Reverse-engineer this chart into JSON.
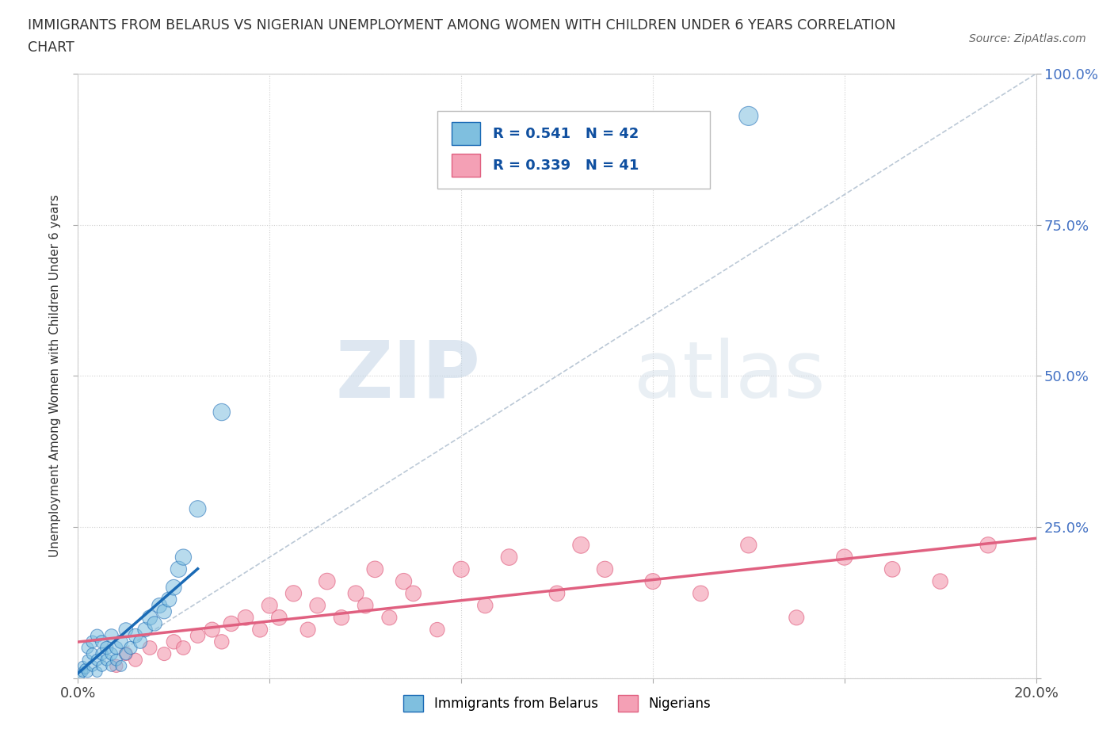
{
  "title_line1": "IMMIGRANTS FROM BELARUS VS NIGERIAN UNEMPLOYMENT AMONG WOMEN WITH CHILDREN UNDER 6 YEARS CORRELATION",
  "title_line2": "CHART",
  "source": "Source: ZipAtlas.com",
  "ylabel": "Unemployment Among Women with Children Under 6 years",
  "xlim": [
    0.0,
    0.2
  ],
  "ylim": [
    0.0,
    1.0
  ],
  "xticks": [
    0.0,
    0.04,
    0.08,
    0.12,
    0.16,
    0.2
  ],
  "yticks": [
    0.0,
    0.25,
    0.5,
    0.75,
    1.0
  ],
  "xtick_labels": [
    "0.0%",
    "",
    "",
    "",
    "",
    "20.0%"
  ],
  "ytick_labels_right": [
    "",
    "25.0%",
    "50.0%",
    "75.0%",
    "100.0%"
  ],
  "grid_color": "#d0d0d0",
  "background_color": "#ffffff",
  "watermark_zip": "ZIP",
  "watermark_atlas": "atlas",
  "legend_r1": "R = 0.541   N = 42",
  "legend_r2": "R = 0.339   N = 41",
  "legend_label1": "Immigrants from Belarus",
  "legend_label2": "Nigerians",
  "color_blue": "#7fbfdf",
  "color_pink": "#f4a0b5",
  "trend_color_blue": "#1a6ab5",
  "trend_color_pink": "#e06080",
  "blue_x": [
    0.0005,
    0.001,
    0.001,
    0.0015,
    0.002,
    0.002,
    0.002,
    0.003,
    0.003,
    0.003,
    0.004,
    0.004,
    0.004,
    0.005,
    0.005,
    0.005,
    0.006,
    0.006,
    0.007,
    0.007,
    0.007,
    0.008,
    0.008,
    0.009,
    0.009,
    0.01,
    0.01,
    0.011,
    0.012,
    0.013,
    0.014,
    0.015,
    0.016,
    0.017,
    0.018,
    0.019,
    0.02,
    0.021,
    0.022,
    0.025,
    0.03,
    0.14
  ],
  "blue_y": [
    0.005,
    0.01,
    0.02,
    0.015,
    0.01,
    0.03,
    0.05,
    0.02,
    0.04,
    0.06,
    0.01,
    0.03,
    0.07,
    0.02,
    0.04,
    0.06,
    0.03,
    0.05,
    0.02,
    0.04,
    0.07,
    0.03,
    0.05,
    0.02,
    0.06,
    0.04,
    0.08,
    0.05,
    0.07,
    0.06,
    0.08,
    0.1,
    0.09,
    0.12,
    0.11,
    0.13,
    0.15,
    0.18,
    0.2,
    0.28,
    0.44,
    0.93
  ],
  "blue_sizes": [
    30,
    35,
    30,
    35,
    40,
    35,
    45,
    40,
    45,
    50,
    35,
    45,
    55,
    40,
    50,
    55,
    45,
    55,
    40,
    50,
    60,
    45,
    55,
    40,
    60,
    50,
    65,
    55,
    65,
    60,
    70,
    75,
    70,
    75,
    70,
    75,
    80,
    85,
    85,
    90,
    95,
    120
  ],
  "pink_x": [
    0.008,
    0.01,
    0.012,
    0.015,
    0.018,
    0.02,
    0.022,
    0.025,
    0.028,
    0.03,
    0.032,
    0.035,
    0.038,
    0.04,
    0.042,
    0.045,
    0.048,
    0.05,
    0.052,
    0.055,
    0.058,
    0.06,
    0.062,
    0.065,
    0.068,
    0.07,
    0.075,
    0.08,
    0.085,
    0.09,
    0.1,
    0.105,
    0.11,
    0.12,
    0.13,
    0.14,
    0.15,
    0.16,
    0.17,
    0.18,
    0.19
  ],
  "pink_y": [
    0.02,
    0.04,
    0.03,
    0.05,
    0.04,
    0.06,
    0.05,
    0.07,
    0.08,
    0.06,
    0.09,
    0.1,
    0.08,
    0.12,
    0.1,
    0.14,
    0.08,
    0.12,
    0.16,
    0.1,
    0.14,
    0.12,
    0.18,
    0.1,
    0.16,
    0.14,
    0.08,
    0.18,
    0.12,
    0.2,
    0.14,
    0.22,
    0.18,
    0.16,
    0.14,
    0.22,
    0.1,
    0.2,
    0.18,
    0.16,
    0.22
  ],
  "pink_sizes": [
    55,
    60,
    60,
    65,
    60,
    70,
    65,
    70,
    75,
    70,
    78,
    80,
    75,
    82,
    80,
    85,
    75,
    80,
    88,
    78,
    82,
    80,
    88,
    75,
    85,
    80,
    70,
    85,
    78,
    88,
    80,
    90,
    85,
    82,
    80,
    85,
    75,
    85,
    80,
    78,
    85
  ]
}
